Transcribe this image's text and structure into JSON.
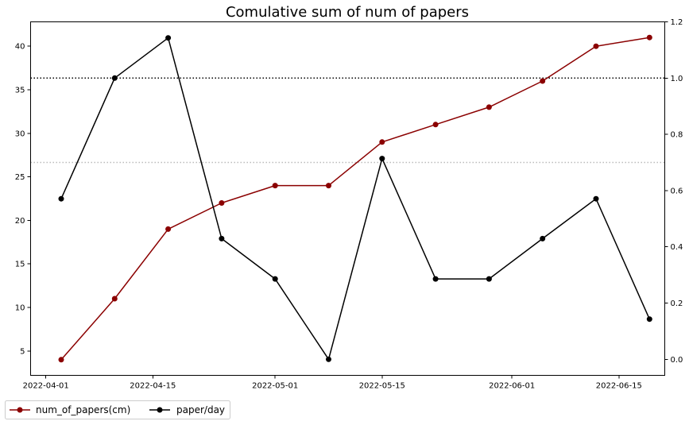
{
  "chart_data": {
    "type": "line",
    "title": "Comulative sum of num of papers",
    "xlabel": "",
    "ylabel": "",
    "x": [
      "2022-04-03",
      "2022-04-10",
      "2022-04-17",
      "2022-04-24",
      "2022-05-01",
      "2022-05-08",
      "2022-05-15",
      "2022-05-22",
      "2022-05-29",
      "2022-06-05",
      "2022-06-12",
      "2022-06-19"
    ],
    "x_ticks": [
      "2022-04-01",
      "2022-04-15",
      "2022-05-01",
      "2022-05-15",
      "2022-06-01",
      "2022-06-15"
    ],
    "xlim": [
      "2022-03-30",
      "2022-06-21"
    ],
    "y_left": {
      "lim": [
        2.2,
        42.8
      ],
      "ticks": [
        5,
        10,
        15,
        20,
        25,
        30,
        35,
        40
      ]
    },
    "y_right": {
      "lim": [
        -0.057,
        1.2
      ],
      "ticks": [
        "0.0",
        "0.2",
        "0.4",
        "0.6",
        "0.8",
        "1.0",
        "1.2"
      ]
    },
    "series": [
      {
        "name": "num_of_papers(cm)",
        "axis": "left",
        "color": "#8b0000",
        "values": [
          4,
          11,
          19,
          22,
          24,
          24,
          29,
          31,
          33,
          36,
          40,
          41
        ]
      },
      {
        "name": "paper/day",
        "axis": "right",
        "color": "#000000",
        "values": [
          0.571,
          1.0,
          1.143,
          0.429,
          0.286,
          0.0,
          0.714,
          0.286,
          0.286,
          0.429,
          0.571,
          0.143
        ]
      }
    ],
    "reference_lines": [
      {
        "axis": "right",
        "value": 1.0,
        "style": "dotted",
        "color": "#000000"
      },
      {
        "axis": "right",
        "value": 0.7,
        "style": "dotted",
        "color": "#bbbbbb"
      }
    ],
    "grid": false,
    "legend_placement": "bottom-left, outside plot"
  }
}
